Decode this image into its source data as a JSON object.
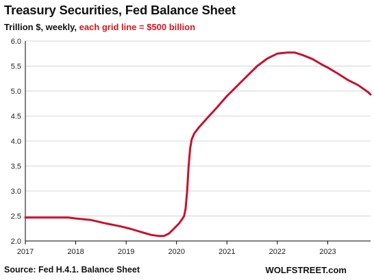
{
  "chart_data": {
    "type": "line",
    "title": "Treasury Securities, Fed Balance Sheet",
    "subtitle_black": "Trillion $, weekly,",
    "subtitle_red": "each grid line = $500 billion",
    "source": "Source: Fed H.4.1. Balance Sheet",
    "brand": "WOLFSTREET.com",
    "ylim": [
      2.0,
      6.0
    ],
    "y_ticks": [
      "2.0",
      "2.5",
      "3.0",
      "3.5",
      "4.0",
      "4.5",
      "5.0",
      "5.5",
      "6.0"
    ],
    "xlim": [
      2017.0,
      2023.85
    ],
    "x_ticks": [
      "2017",
      "2018",
      "2019",
      "2020",
      "2021",
      "2022",
      "2023"
    ],
    "grid": "horizontal",
    "colors": {
      "line": "#c8102e",
      "grid": "#d4d4d4",
      "axis": "#000000"
    },
    "series": [
      {
        "x": [
          2017.0,
          2017.5,
          2017.85,
          2018.0,
          2018.3,
          2018.6,
          2018.9,
          2019.1,
          2019.3,
          2019.5,
          2019.65,
          2019.75,
          2019.85,
          2019.95,
          2020.05,
          2020.1,
          2020.15,
          2020.18,
          2020.21,
          2020.24,
          2020.27,
          2020.3,
          2020.35,
          2020.45,
          2020.6,
          2020.8,
          2021.0,
          2021.2,
          2021.4,
          2021.6,
          2021.8,
          2022.0,
          2022.2,
          2022.35,
          2022.5,
          2022.7,
          2022.9,
          2023.0,
          2023.2,
          2023.4,
          2023.6,
          2023.8,
          2023.85
        ],
        "y": [
          2.47,
          2.47,
          2.47,
          2.45,
          2.42,
          2.35,
          2.29,
          2.24,
          2.18,
          2.12,
          2.1,
          2.1,
          2.15,
          2.25,
          2.35,
          2.42,
          2.5,
          2.65,
          3.0,
          3.5,
          3.85,
          4.03,
          4.15,
          4.28,
          4.45,
          4.67,
          4.9,
          5.1,
          5.3,
          5.5,
          5.65,
          5.75,
          5.77,
          5.77,
          5.72,
          5.64,
          5.52,
          5.47,
          5.35,
          5.22,
          5.12,
          4.98,
          4.93
        ]
      }
    ]
  }
}
